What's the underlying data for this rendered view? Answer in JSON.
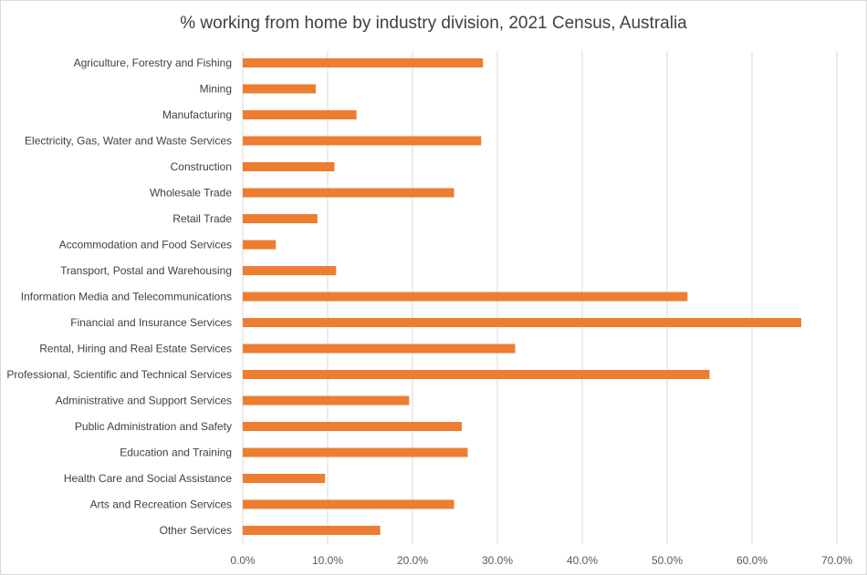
{
  "chart_data": {
    "type": "bar",
    "orientation": "horizontal",
    "title": "% working from home by industry division, 2021 Census, Australia",
    "xlabel": "",
    "ylabel": "",
    "categories": [
      "Agriculture, Forestry and Fishing",
      "Mining",
      "Manufacturing",
      "Electricity, Gas, Water and Waste Services",
      "Construction",
      "Wholesale Trade",
      "Retail Trade",
      "Accommodation and Food Services",
      "Transport, Postal and Warehousing",
      "Information Media and Telecommunications",
      "Financial and Insurance Services",
      "Rental, Hiring and Real Estate Services",
      "Professional, Scientific and Technical Services",
      "Administrative and Support Services",
      "Public Administration and Safety",
      "Education and Training",
      "Health Care and Social Assistance",
      "Arts and Recreation Services",
      "Other Services"
    ],
    "values": [
      28.3,
      8.6,
      13.4,
      28.1,
      10.8,
      24.9,
      8.8,
      3.9,
      11.0,
      52.4,
      65.8,
      32.1,
      55.0,
      19.6,
      25.8,
      26.5,
      9.7,
      24.9,
      16.2
    ],
    "xlim": [
      0,
      70
    ],
    "xticks": [
      "0.0%",
      "10.0%",
      "20.0%",
      "30.0%",
      "40.0%",
      "50.0%",
      "60.0%",
      "70.0%"
    ],
    "grid": "vertical",
    "legend": "none",
    "bar_color": "#ed7d31",
    "grid_color": "#d9d9d9"
  }
}
